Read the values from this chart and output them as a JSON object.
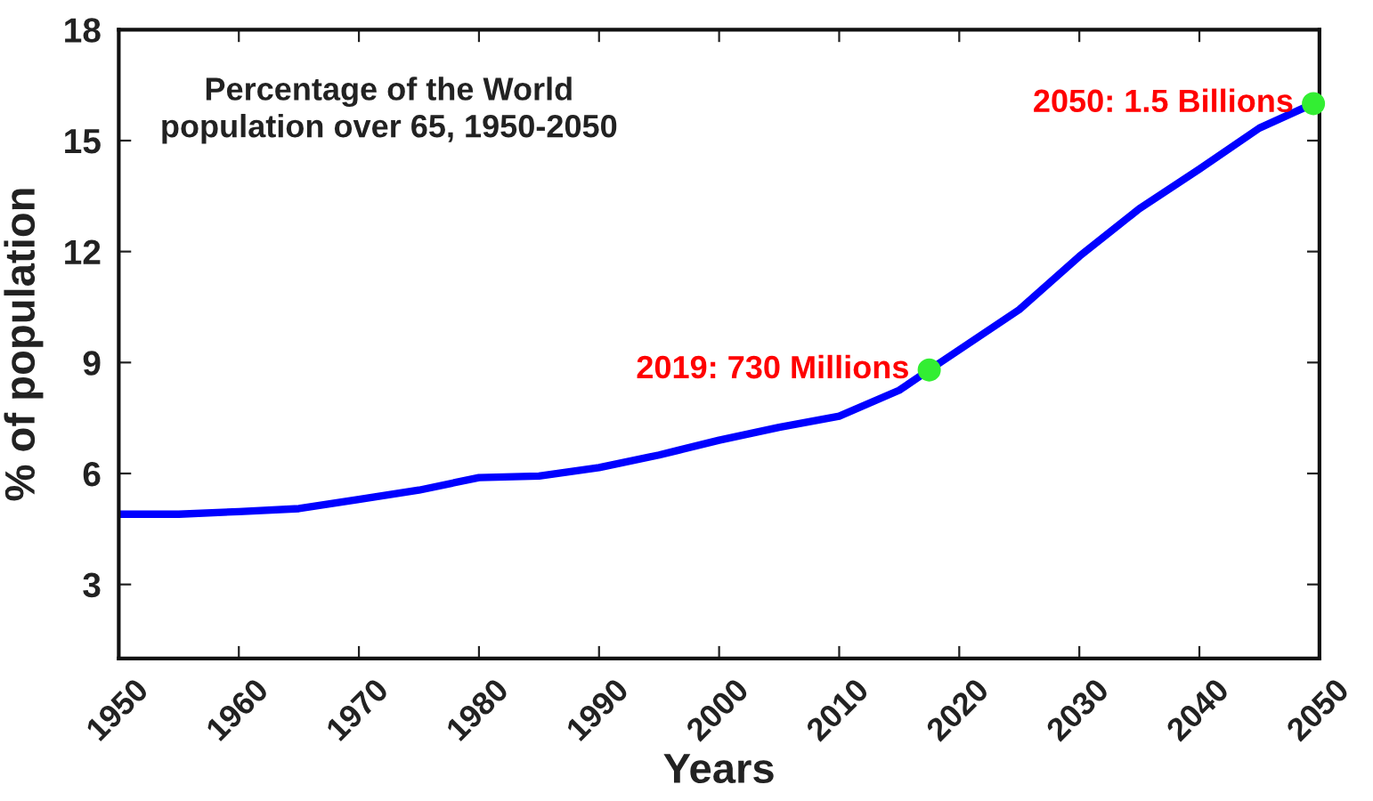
{
  "chart_data": {
    "type": "line",
    "title": "Percentage of the World\npopulation over 65, 1950-2050",
    "xlabel": "Years",
    "ylabel": "% of population",
    "series": [
      {
        "color": "#0000ff",
        "x": [
          1950,
          1955,
          1960,
          1965,
          1970,
          1975,
          1980,
          1985,
          1990,
          1995,
          2000,
          2005,
          2010,
          2015,
          2017.5,
          2025,
          2030,
          2035,
          2040,
          2045,
          2049.5
        ],
        "values": [
          4.9,
          4.9,
          4.97,
          5.05,
          5.3,
          5.55,
          5.89,
          5.93,
          6.16,
          6.5,
          6.9,
          7.25,
          7.55,
          8.25,
          8.8,
          10.43,
          11.87,
          13.16,
          14.23,
          15.34,
          16.0
        ]
      },
      {
        "type": "scatter",
        "color": "#33ee33",
        "marker": "circle",
        "x": [
          2017.5,
          2049.5
        ],
        "values": [
          8.8,
          16.0
        ]
      }
    ],
    "annotations": [
      {
        "text": "2019: 730 Millions",
        "x": 2017.5,
        "y": 8.8
      },
      {
        "text": "2050: 1.5 Billions",
        "x": 2049.5,
        "y": 16.0
      }
    ],
    "xlim": [
      1950,
      2050
    ],
    "xticks": [
      1950,
      1960,
      1970,
      1980,
      1990,
      2000,
      2010,
      2020,
      2030,
      2040,
      2050
    ],
    "ylim": [
      1,
      18
    ],
    "yticks": [
      3,
      6,
      9,
      12,
      15,
      18
    ],
    "grid": false,
    "legend": false
  }
}
